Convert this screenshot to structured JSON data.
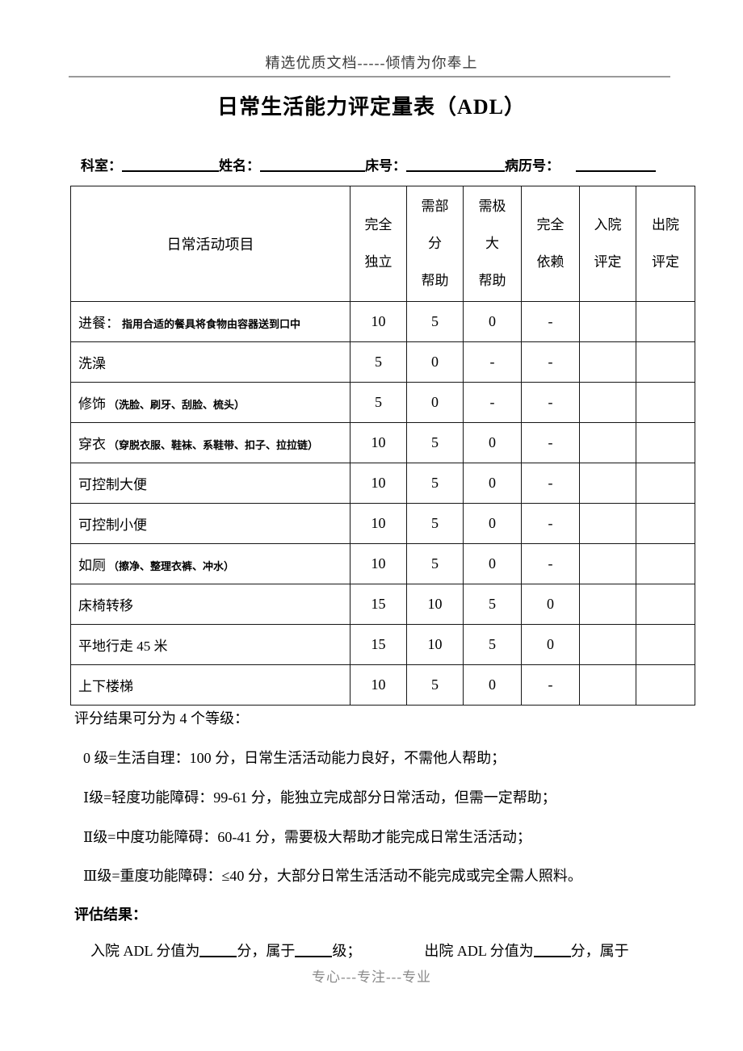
{
  "page": {
    "header_text": "精选优质文档-----倾情为你奉上",
    "title": "日常生活能力评定量表（ADL）",
    "footer_text": "专心---专注---专业"
  },
  "colors": {
    "text": "#000000",
    "header_rule_gray": "#9a9a9a",
    "footer_gray": "#8a8a8a"
  },
  "meta": {
    "fields": [
      {
        "label": "科室："
      },
      {
        "label": "姓名："
      },
      {
        "label": "床号："
      },
      {
        "label": "病历号："
      }
    ]
  },
  "table": {
    "item_header": "日常活动项目",
    "columns": [
      {
        "lines": [
          "完全",
          "独立"
        ]
      },
      {
        "lines": [
          "需部",
          "分",
          "帮助"
        ]
      },
      {
        "lines": [
          "需极",
          "大",
          "帮助"
        ]
      },
      {
        "lines": [
          "完全",
          "依赖"
        ]
      },
      {
        "lines": [
          "入院",
          "评定"
        ]
      },
      {
        "lines": [
          "出院",
          "评定"
        ]
      }
    ],
    "rows": [
      {
        "name": "进餐：",
        "desc": "指用合适的餐具将食物由容器送到口中",
        "scores": [
          "10",
          "5",
          "0",
          "-"
        ],
        "admission": "",
        "discharge": ""
      },
      {
        "name": "洗澡",
        "desc": "",
        "scores": [
          "5",
          "0",
          "-",
          "-"
        ],
        "admission": "",
        "discharge": ""
      },
      {
        "name": "修饰",
        "desc": "（洗脸、刷牙、刮脸、梳头）",
        "scores": [
          "5",
          "0",
          "-",
          "-"
        ],
        "admission": "",
        "discharge": ""
      },
      {
        "name": "穿衣",
        "desc": "（穿脱衣服、鞋袜、系鞋带、扣子、拉拉链）",
        "scores": [
          "10",
          "5",
          "0",
          "-"
        ],
        "admission": "",
        "discharge": ""
      },
      {
        "name": "可控制大便",
        "desc": "",
        "scores": [
          "10",
          "5",
          "0",
          "-"
        ],
        "admission": "",
        "discharge": ""
      },
      {
        "name": "可控制小便",
        "desc": "",
        "scores": [
          "10",
          "5",
          "0",
          "-"
        ],
        "admission": "",
        "discharge": ""
      },
      {
        "name": "如厕",
        "desc": "（擦净、整理衣裤、冲水）",
        "scores": [
          "10",
          "5",
          "0",
          "-"
        ],
        "admission": "",
        "discharge": ""
      },
      {
        "name": "床椅转移",
        "desc": "",
        "scores": [
          "15",
          "10",
          "5",
          "0"
        ],
        "admission": "",
        "discharge": ""
      },
      {
        "name": "平地行走 45 米",
        "desc": "",
        "scores": [
          "15",
          "10",
          "5",
          "0"
        ],
        "admission": "",
        "discharge": ""
      },
      {
        "name": "上下楼梯",
        "desc": "",
        "scores": [
          "10",
          "5",
          "0",
          "-"
        ],
        "admission": "",
        "discharge": ""
      }
    ]
  },
  "grading": {
    "intro": "评分结果可分为 4 个等级：",
    "levels": [
      "0 级=生活自理：100 分，日常生活活动能力良好，不需他人帮助；",
      "Ⅰ级=轻度功能障碍：99-61 分，能独立完成部分日常活动，但需一定帮助；",
      "Ⅱ级=中度功能障碍：60-41 分，需要极大帮助才能完成日常生活活动；",
      "Ⅲ级=重度功能障碍：≤40 分，大部分日常生活活动不能完成或完全需人照料。"
    ]
  },
  "assessment": {
    "heading": "评估结果：",
    "admission_prefix": "入院 ADL 分值为",
    "score_suffix": "分，属于",
    "grade_suffix": "级；",
    "discharge_prefix": "出院 ADL 分值为",
    "discharge_suffix": "分，属于"
  }
}
